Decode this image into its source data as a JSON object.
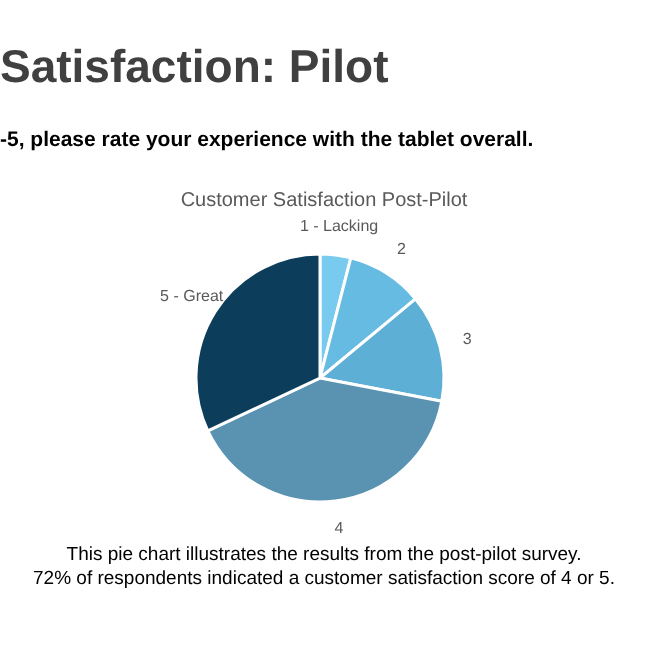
{
  "chart_data": {
    "type": "pie",
    "title": "Customer Satisfaction Post-Pilot",
    "categories": [
      "1 - Lacking",
      "2",
      "3",
      "4",
      "5 - Great"
    ],
    "values": [
      4,
      10,
      14,
      40,
      32
    ],
    "colors": [
      "#79caef",
      "#66bbe3",
      "#5eafd6",
      "#5a92b2",
      "#0c3e5b"
    ],
    "annotations": [
      "Satisfaction: Pilot",
      "-5, please rate your experience with the tablet overall.",
      "This pie chart illustrates the results from the post-pilot survey.",
      "72% of respondents indicated a customer satisfaction score of 4 or 5."
    ]
  }
}
